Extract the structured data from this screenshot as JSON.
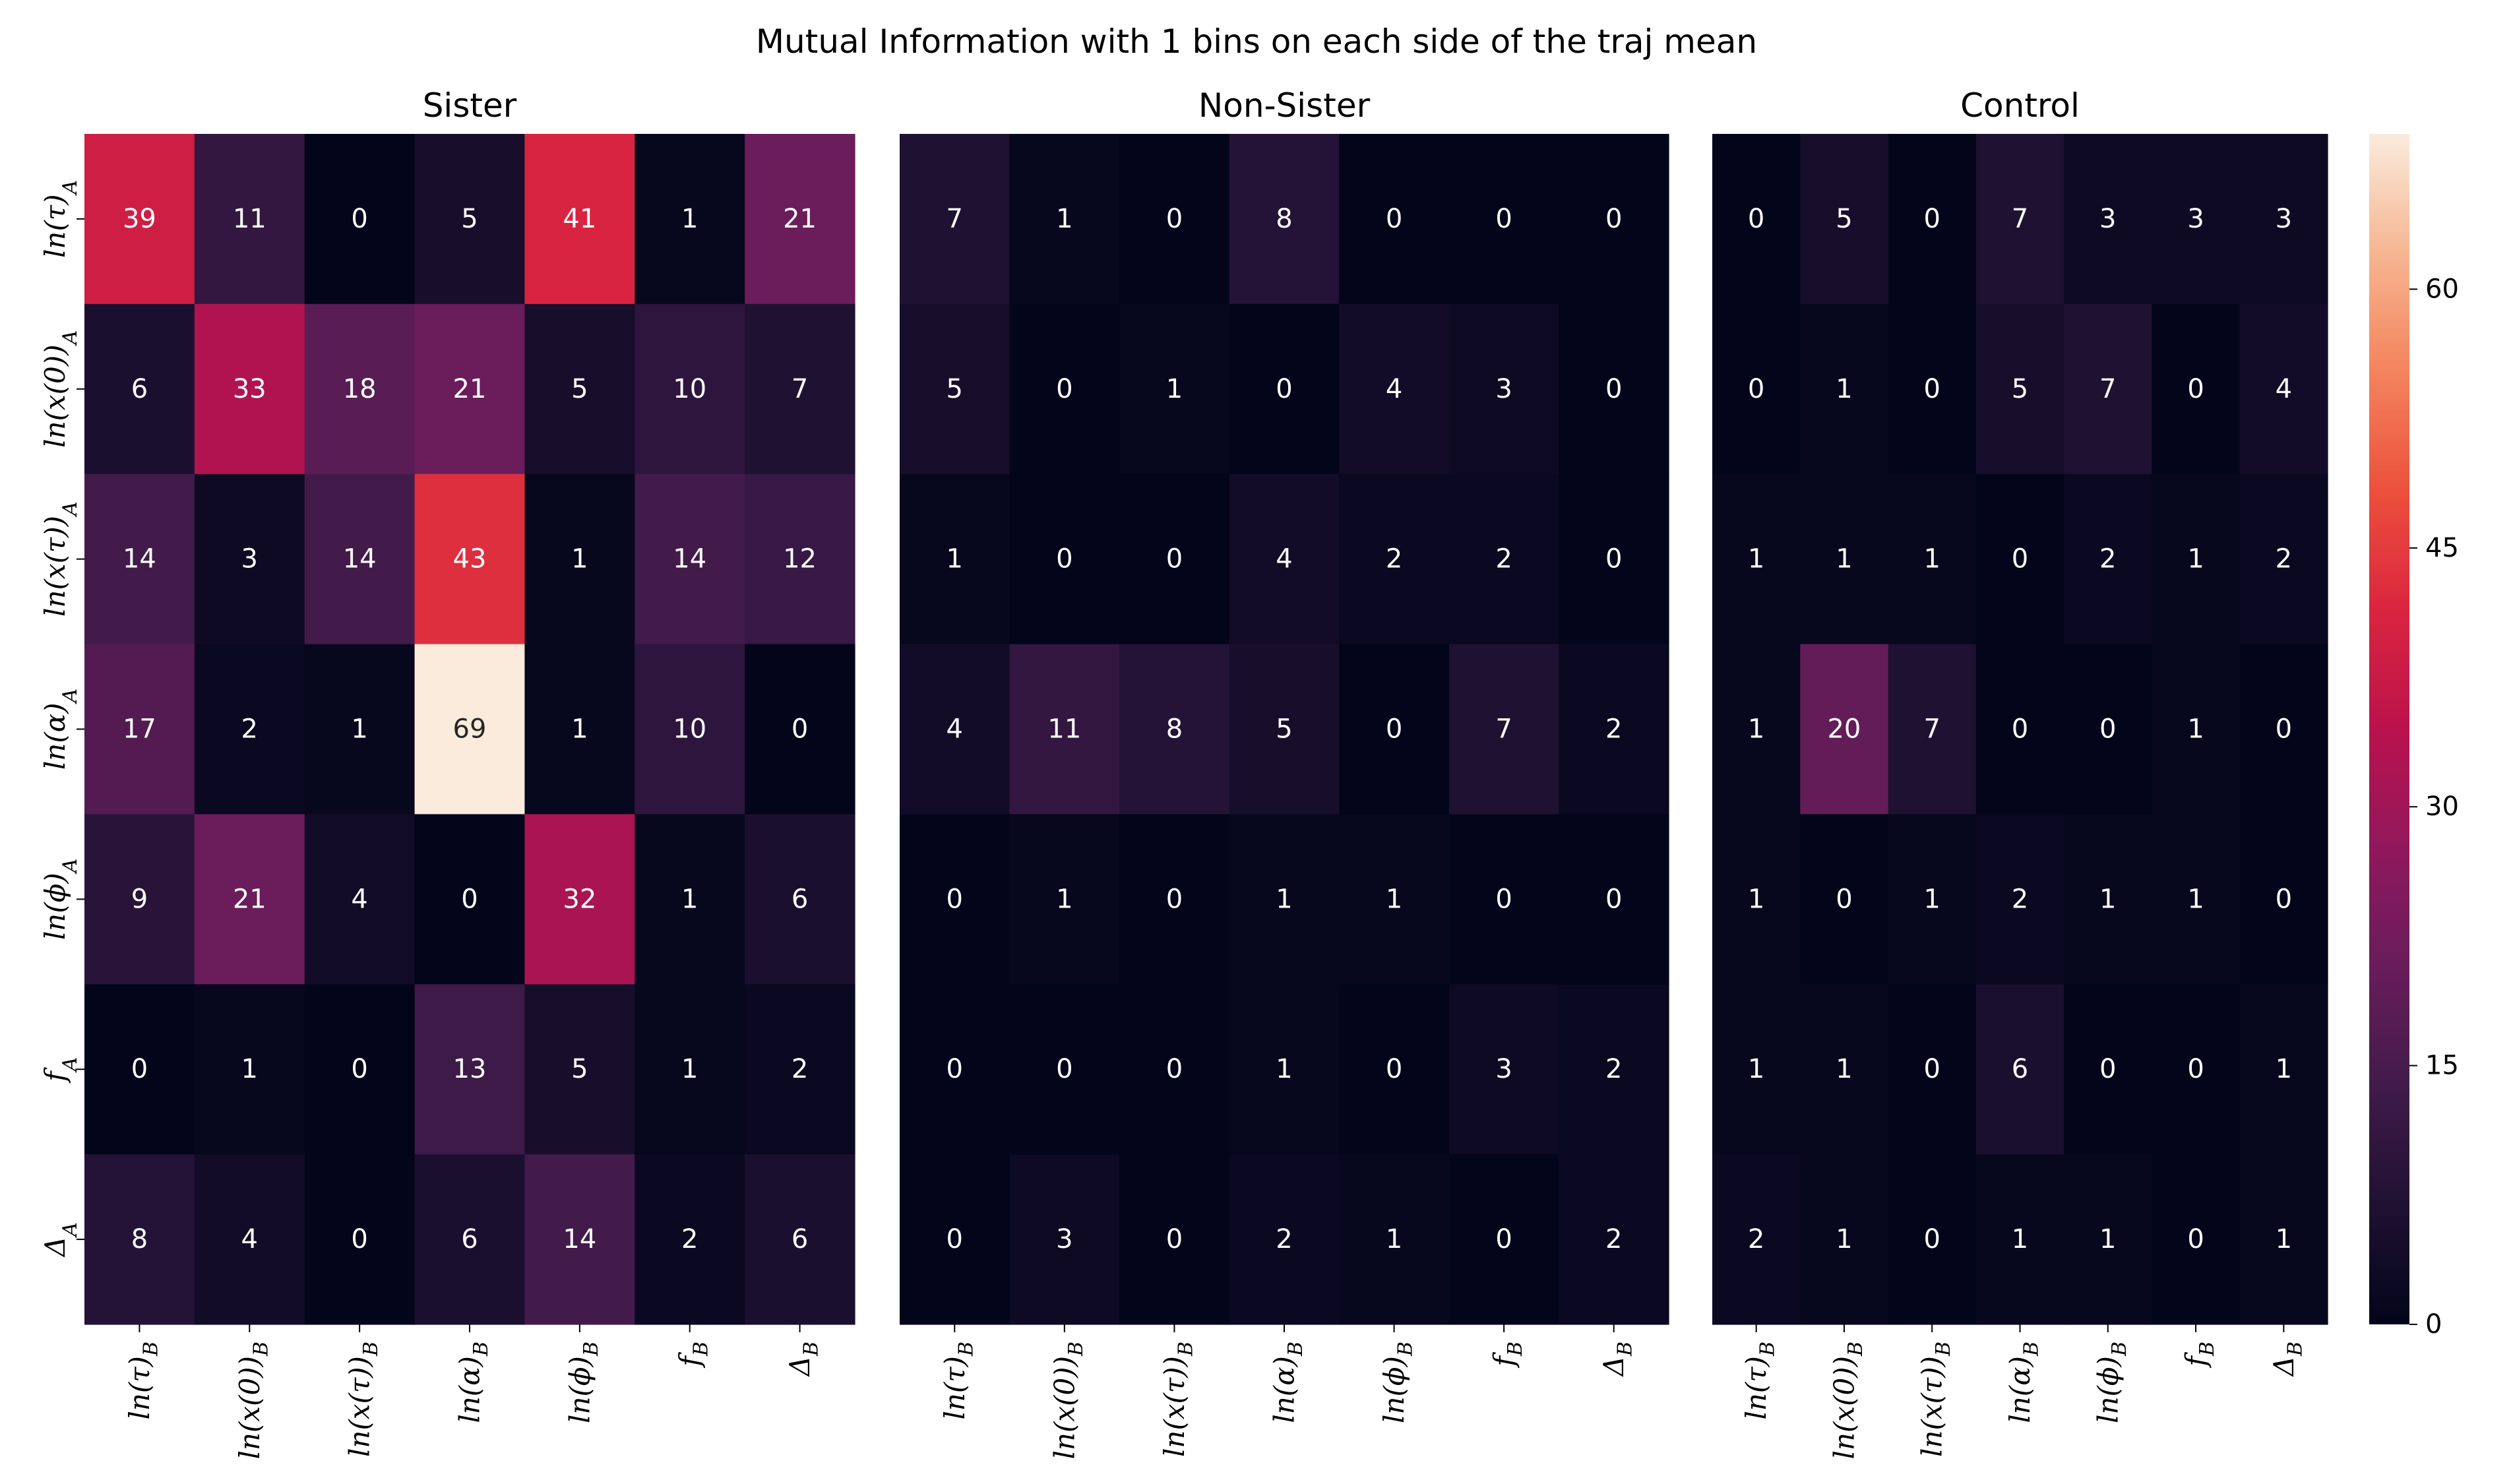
{
  "chart_data": {
    "type": "heatmap",
    "title": "Mutual Information with 1 bins on each side of the traj mean",
    "row_labels": [
      "ln(τ)",
      "ln(x(0))",
      "ln(x(τ))",
      "ln(α)",
      "ln(ϕ)",
      "f",
      "Δ"
    ],
    "row_subscript": "A",
    "col_labels": [
      "ln(τ)",
      "ln(x(0))",
      "ln(x(τ))",
      "ln(α)",
      "ln(ϕ)",
      "f",
      "Δ"
    ],
    "col_subscript": "B",
    "vmin": 0,
    "vmax": 69,
    "colorbar_ticks": [
      0,
      15,
      30,
      45,
      60
    ],
    "colormap": "rocket",
    "panels": [
      {
        "title": "Sister",
        "values": [
          [
            39,
            11,
            0,
            5,
            41,
            1,
            21
          ],
          [
            6,
            33,
            18,
            21,
            5,
            10,
            7
          ],
          [
            14,
            3,
            14,
            43,
            1,
            14,
            12
          ],
          [
            17,
            2,
            1,
            69,
            1,
            10,
            0
          ],
          [
            9,
            21,
            4,
            0,
            32,
            1,
            6
          ],
          [
            0,
            1,
            0,
            13,
            5,
            1,
            2
          ],
          [
            8,
            4,
            0,
            6,
            14,
            2,
            6
          ]
        ]
      },
      {
        "title": "Non-Sister",
        "values": [
          [
            7,
            1,
            0,
            8,
            0,
            0,
            0
          ],
          [
            5,
            0,
            1,
            0,
            4,
            3,
            0
          ],
          [
            1,
            0,
            0,
            4,
            2,
            2,
            0
          ],
          [
            4,
            11,
            8,
            5,
            0,
            7,
            2
          ],
          [
            0,
            1,
            0,
            1,
            1,
            0,
            0
          ],
          [
            0,
            0,
            0,
            1,
            0,
            3,
            2
          ],
          [
            0,
            3,
            0,
            2,
            1,
            0,
            2
          ]
        ]
      },
      {
        "title": "Control",
        "values": [
          [
            0,
            5,
            0,
            7,
            3,
            3,
            3
          ],
          [
            0,
            1,
            0,
            5,
            7,
            0,
            4
          ],
          [
            1,
            1,
            1,
            0,
            2,
            1,
            2
          ],
          [
            1,
            20,
            7,
            0,
            0,
            1,
            0
          ],
          [
            1,
            0,
            1,
            2,
            1,
            1,
            0
          ],
          [
            1,
            1,
            0,
            6,
            0,
            0,
            1
          ],
          [
            2,
            1,
            0,
            1,
            1,
            0,
            1
          ]
        ]
      }
    ]
  }
}
